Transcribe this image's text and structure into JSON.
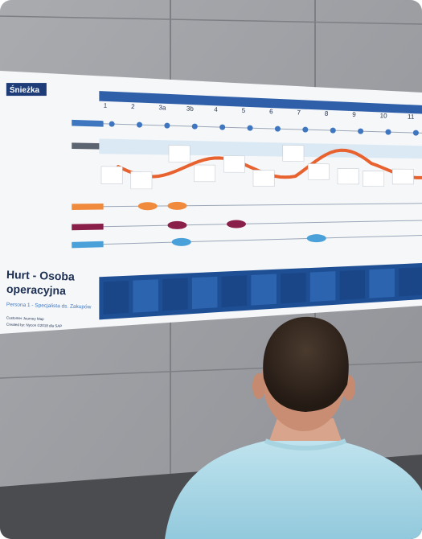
{
  "poster": {
    "logo": "Śnieżka",
    "title_lines": [
      "Hurt - Osoba",
      "operacyjna"
    ],
    "subtitle": "Persona 1 - Specjalista ds. Zakupów",
    "footer": [
      "Customer Journey Map",
      "Created by: Nycon ©2018 dla SAP"
    ],
    "steps": [
      "1",
      "2",
      "3a",
      "3b",
      "4",
      "5",
      "6",
      "7",
      "8",
      "9",
      "10",
      "11"
    ]
  }
}
